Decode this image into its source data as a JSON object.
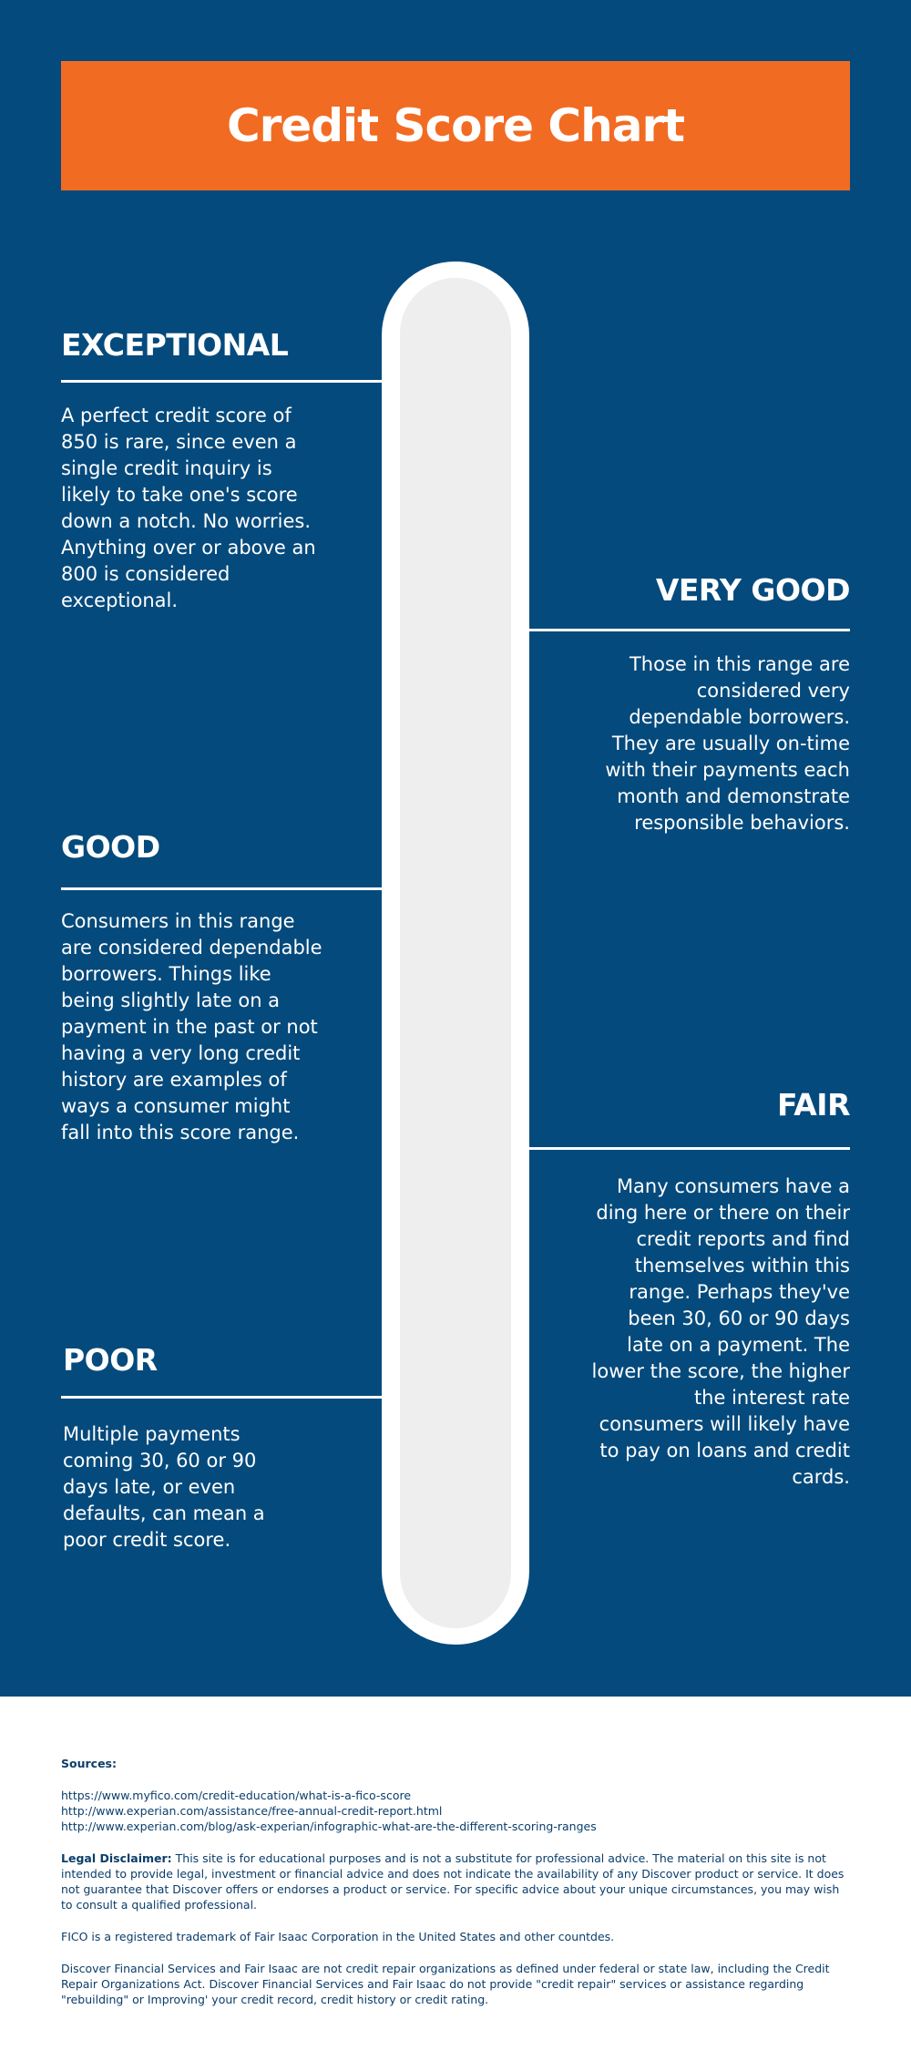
{
  "title": "Credit Score Chart",
  "ranges": {
    "exceptional": {
      "heading": "EXCEPTIONAL",
      "text": "A perfect credit score of 850 is rare, since even a single credit inquiry is likely to take one's score down a notch. No worries. Anything over or above an 800 is considered exceptional."
    },
    "very_good": {
      "heading": "VERY GOOD",
      "text": "Those in this range are considered very dependable borrowers. They are usually on-time with their payments each month and demonstrate responsible behaviors."
    },
    "good": {
      "heading": "GOOD",
      "text": "Consumers in this range are considered dependable borrowers. Things like being slightly late on a payment in the past or not having a very long credit history are examples of ways a consumer might fall into this score range."
    },
    "fair": {
      "heading": "FAIR",
      "text": "Many consumers have a ding here or there on their credit reports and find themselves within this range. Perhaps they've been 30, 60 or 90 days late on a payment. The lower the score, the higher the interest rate consumers will likely have to pay on loans and credit cards."
    },
    "poor": {
      "heading": "POOR",
      "text": "Multiple payments coming 30, 60 or 90 days late, or even defaults, can mean a poor credit score."
    }
  },
  "footer": {
    "sources_title": "Sources:",
    "links": [
      "https://www.myfico.com/credit-education/what-is-a-fico-score",
      "http://www.experian.com/assistance/free-annual-credit-report.html",
      "http://www.experian.com/blog/ask-experian/infographic-what-are-the-different-scoring-ranges"
    ],
    "disclaimer_label": "Legal Disclaimer:",
    "disclaimer_text": " This site is for educational purposes and is not a substitute for professional advice. The material on this site is not intended to provide legal, investment or financial advice and does not indicate the availability of any Discover product or service. It does not guarantee that Discover offers or endorses a product or service. For specific advice about your unique circumstances, you may wish to consult a qualified professional.",
    "trademark": "FICO is a registered trademark of Fair Isaac Corporation in the United States and other countdes.",
    "repair_note": "Discover Financial Services and Fair Isaac are not credit repair organizations as defined under federal or state law, including the Credit Repair Organizations Act. Discover Financial Services and Fair Isaac do not provide \"credit repair\" services or assistance regarding \"rebuilding\" or Improving' your credit record, credit history or credit rating."
  },
  "colors": {
    "background": "#054a7c",
    "banner": "#f26b23",
    "thermometer": "#eeeeee"
  }
}
